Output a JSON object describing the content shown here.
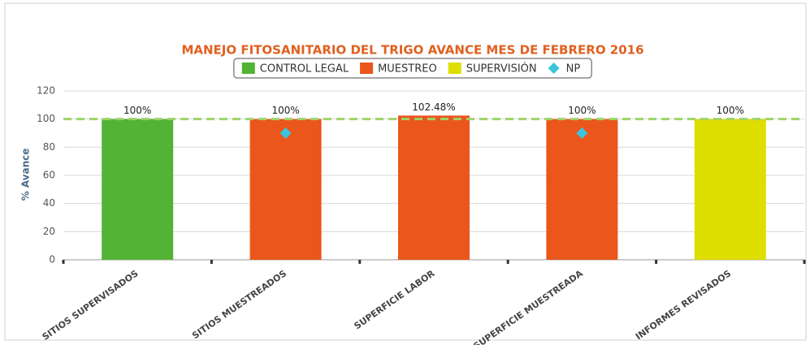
{
  "chart_data": {
    "type": "bar",
    "title": "MANEJO FITOSANITARIO DEL TRIGO AVANCE MES DE FEBRERO 2016",
    "y_label": "% Avance",
    "categories": [
      "SITIOS SUPERVISADOS",
      "SITIOS MUESTREADOS",
      "SUPERFICIE LABOR",
      "SUPERFICIE MUESTREADA",
      "INFORMES REVISADOS"
    ],
    "series": [
      {
        "name": "CONTROL LEGAL",
        "color": "#52b334",
        "type": "bar",
        "values": [
          100,
          null,
          null,
          null,
          null
        ],
        "value_labels": [
          "100%",
          null,
          null,
          null,
          null
        ]
      },
      {
        "name": "MUESTREO",
        "color": "#ea561c",
        "type": "bar",
        "values": [
          null,
          100,
          102.48,
          100,
          null
        ],
        "value_labels": [
          null,
          "100%",
          "102.48%",
          "100%",
          null
        ]
      },
      {
        "name": "SUPERVISIÓN",
        "color": "#dede00",
        "type": "bar",
        "values": [
          null,
          null,
          null,
          null,
          100
        ],
        "value_labels": [
          null,
          null,
          null,
          null,
          "100%"
        ]
      },
      {
        "name": "NP",
        "color": "#3cc4dc",
        "type": "diamond",
        "values": [
          null,
          90,
          null,
          90,
          null
        ]
      }
    ],
    "reference_line": {
      "value": 100,
      "color": "#9ed36a"
    },
    "ylim": [
      0,
      120
    ],
    "yticks": [
      0,
      20,
      40,
      60,
      80,
      100,
      120
    ],
    "grid": true,
    "legend": "top"
  }
}
